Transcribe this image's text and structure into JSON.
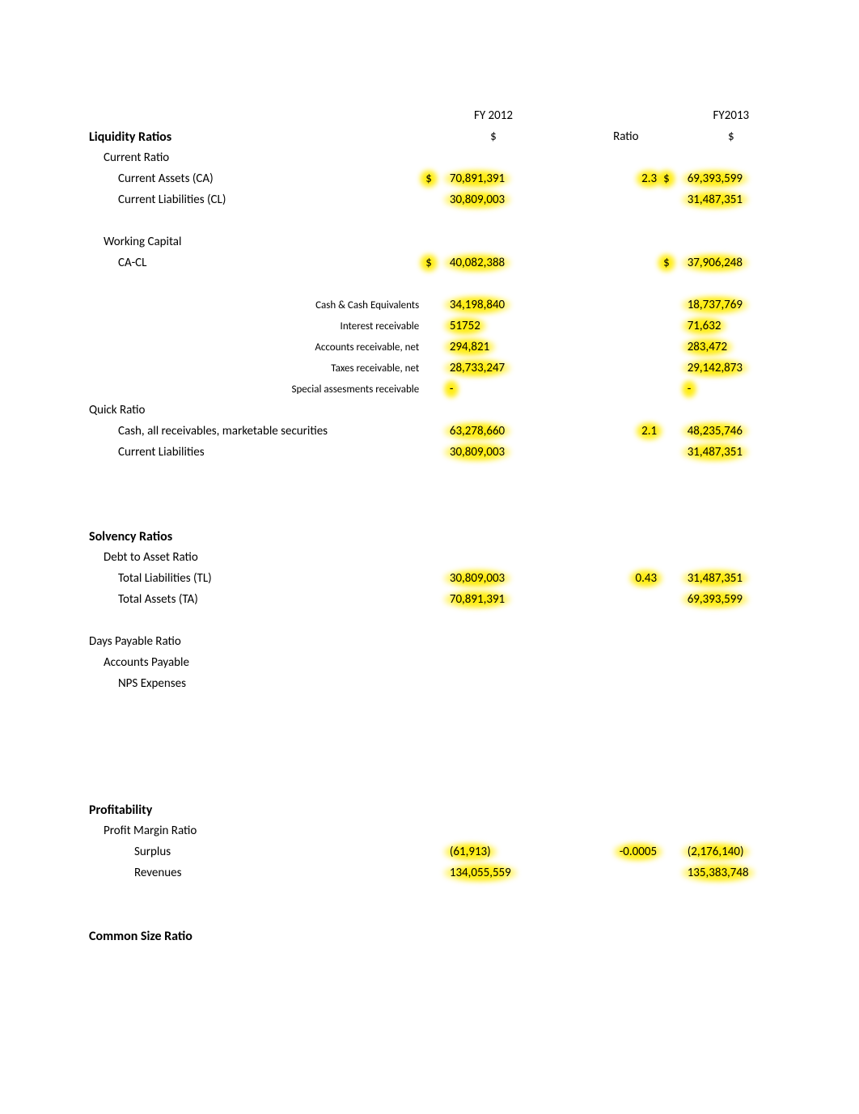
{
  "headers": {
    "fy2012": "FY 2012",
    "fy2013": "FY2013",
    "dollar_sym": "$",
    "ratio": "Ratio"
  },
  "sections": {
    "liquidity": "Liquidity Ratios",
    "solvency": "Solvency Ratios",
    "profitability": "Profitability",
    "common_size": "Common Size Ratio"
  },
  "rows": {
    "current_ratio": "Current Ratio",
    "current_assets": "Current Assets (CA)",
    "current_liabilities": "Current Liabilities (CL)",
    "working_capital": "Working Capital",
    "ca_minus_cl": "CA-CL",
    "cash_equiv": "Cash & Cash Equivalents",
    "interest_recv": "Interest receivable",
    "accounts_recv": "Accounts receivable, net",
    "taxes_recv": "Taxes receivable, net",
    "special_assess": "Special assesments receivable",
    "quick_ratio": "Quick Ratio",
    "cash_all_recv": "Cash, all receivables, marketable securities",
    "current_liab2": "Current Liabilities",
    "debt_to_asset": "Debt to Asset Ratio",
    "total_liab": "Total Liabilities (TL)",
    "total_assets": "Total Assets (TA)",
    "days_payable": "Days Payable Ratio",
    "accounts_payable": "Accounts Payable",
    "nps_expenses": "NPS Expenses",
    "profit_margin": "Profit Margin Ratio",
    "surplus": "Surplus",
    "revenues": "Revenues"
  },
  "values": {
    "ca_2012": "70,891,391",
    "ca_2013": "69,393,599",
    "ca_ratio": "2.3",
    "cl_2012": "30,809,003",
    "cl_2013": "31,487,351",
    "wc_2012": "40,082,388",
    "wc_2013": "37,906,248",
    "cash_2012": "34,198,840",
    "cash_2013": "18,737,769",
    "int_2012": "51752",
    "int_2013": "71,632",
    "ar_2012": "294,821",
    "ar_2013": "283,472",
    "tax_2012": "28,733,247",
    "tax_2013": "29,142,873",
    "special_2012": "-",
    "special_2013": "-",
    "quick_num_2012": "63,278,660",
    "quick_num_2013": "48,235,746",
    "quick_ratio": "2.1",
    "quick_den_2012": "30,809,003",
    "quick_den_2013": "31,487,351",
    "tl_2012": "30,809,003",
    "tl_2013": "31,487,351",
    "da_ratio": "0.43",
    "ta_2012": "70,891,391",
    "ta_2013": "69,393,599",
    "surplus_2012": "(61,913)",
    "surplus_2013": "(2,176,140)",
    "pm_ratio": "-0.0005",
    "rev_2012": "134,055,559",
    "rev_2013": "135,383,748"
  },
  "style": {
    "highlight_color": "#ffeb00",
    "text_color": "#000000",
    "background": "#ffffff",
    "font_family": "Calibri, Arial, sans-serif",
    "base_font_size_pt": 11,
    "small_font_size_pt": 10,
    "title_font_size_pt": 12,
    "bold_weight": 700
  }
}
